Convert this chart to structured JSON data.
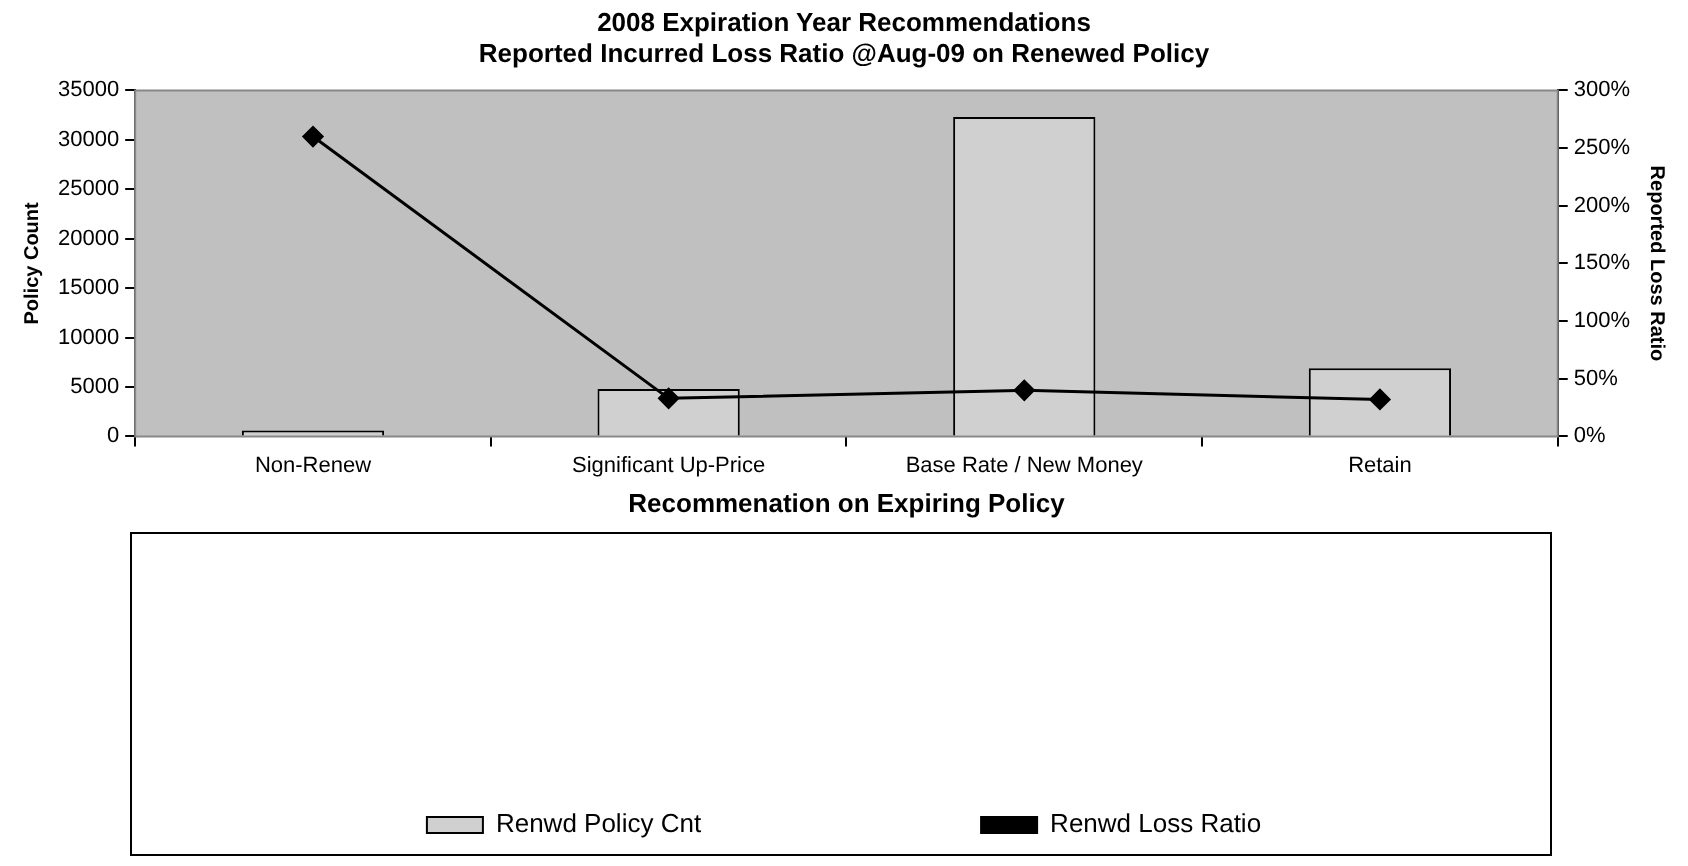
{
  "chart_data": {
    "type": "bar",
    "title": "2008 Expiration Year Recommendations",
    "subtitle": "Reported Incurred Loss Ratio @Aug-09 on Renewed Policy",
    "xlabel": "Recommenation on Expiring Policy",
    "ylabel": "Policy Count",
    "y2label": "Reported Loss Ratio",
    "categories": [
      "Non-Renew",
      "Significant Up-Price",
      "Base Rate / New Money",
      "Retain"
    ],
    "series": [
      {
        "name": "Renwd Policy Cnt",
        "color": "#d0d0d0",
        "values": [
          600,
          4800,
          32300,
          6900
        ]
      },
      {
        "name": "Renwd Loss Ratio",
        "type": "line",
        "axis": "y2",
        "color": "#000000",
        "marker": "diamond",
        "values": [
          260,
          33,
          40,
          32
        ]
      }
    ],
    "ylim": [
      0,
      35000
    ],
    "yticks": [
      0,
      5000,
      10000,
      15000,
      20000,
      25000,
      30000,
      35000
    ],
    "y2lim": [
      0,
      300
    ],
    "y2ticks": [
      {
        "value": 0,
        "label": "0%"
      },
      {
        "value": 50,
        "label": "50%"
      },
      {
        "value": 100,
        "label": "100%"
      },
      {
        "value": 150,
        "label": "150%"
      },
      {
        "value": 200,
        "label": "200%"
      },
      {
        "value": 250,
        "label": "250%"
      },
      {
        "value": 300,
        "label": "300%"
      }
    ],
    "legend": "bottom"
  }
}
